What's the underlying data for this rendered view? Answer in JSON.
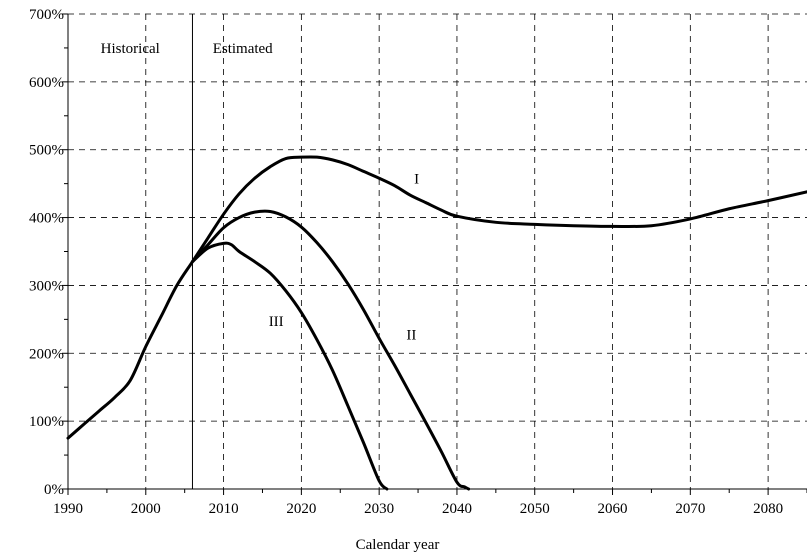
{
  "chart_data": {
    "type": "line",
    "title": "",
    "xlabel": "Calendar year",
    "ylabel": "",
    "xlim": [
      1990,
      2085
    ],
    "ylim": [
      0,
      700
    ],
    "x_ticks": [
      1990,
      2000,
      2010,
      2020,
      2030,
      2040,
      2050,
      2060,
      2070,
      2080
    ],
    "y_ticks": [
      0,
      100,
      200,
      300,
      400,
      500,
      600,
      700
    ],
    "y_tick_suffix": "%",
    "grid": true,
    "divider_year": 2006,
    "annotations": [
      {
        "text": "Historical",
        "x": 1994.2,
        "y": 650
      },
      {
        "text": "Estimated",
        "x": 2008.6,
        "y": 650
      }
    ],
    "series": [
      {
        "name": "I",
        "label_pos": {
          "x": 2034.5,
          "y": 450
        },
        "x": [
          1990,
          1992,
          1994,
          1996,
          1998,
          2000,
          2002,
          2004,
          2006,
          2008,
          2010,
          2012,
          2014,
          2016,
          2018,
          2020,
          2022,
          2024,
          2026,
          2028,
          2030,
          2032,
          2034,
          2036,
          2038,
          2040,
          2045,
          2050,
          2055,
          2060,
          2065,
          2070,
          2075,
          2080,
          2085
        ],
        "y": [
          75,
          95,
          115,
          135,
          160,
          210,
          255,
          300,
          335,
          370,
          405,
          435,
          458,
          475,
          487,
          489,
          489,
          485,
          478,
          468,
          458,
          447,
          433,
          422,
          411,
          402,
          393,
          390,
          388,
          387,
          388,
          398,
          413,
          425,
          438
        ]
      },
      {
        "name": "II",
        "label_pos": {
          "x": 2033.5,
          "y": 220
        },
        "x": [
          2006,
          2008,
          2010,
          2012,
          2014,
          2016,
          2018,
          2020,
          2022,
          2024,
          2026,
          2028,
          2030,
          2032,
          2034,
          2036,
          2038,
          2040,
          2041,
          2041.5
        ],
        "y": [
          335,
          360,
          385,
          400,
          408,
          409,
          401,
          386,
          363,
          335,
          302,
          264,
          222,
          182,
          140,
          98,
          55,
          10,
          3,
          0
        ]
      },
      {
        "name": "III",
        "label_pos": {
          "x": 2015.8,
          "y": 240
        },
        "x": [
          2006,
          2008,
          2010,
          2011,
          2012,
          2014,
          2016,
          2018,
          2020,
          2022,
          2024,
          2026,
          2028,
          2030,
          2031
        ],
        "y": [
          335,
          355,
          362,
          360,
          350,
          335,
          318,
          292,
          260,
          220,
          175,
          122,
          68,
          12,
          0
        ]
      }
    ]
  }
}
